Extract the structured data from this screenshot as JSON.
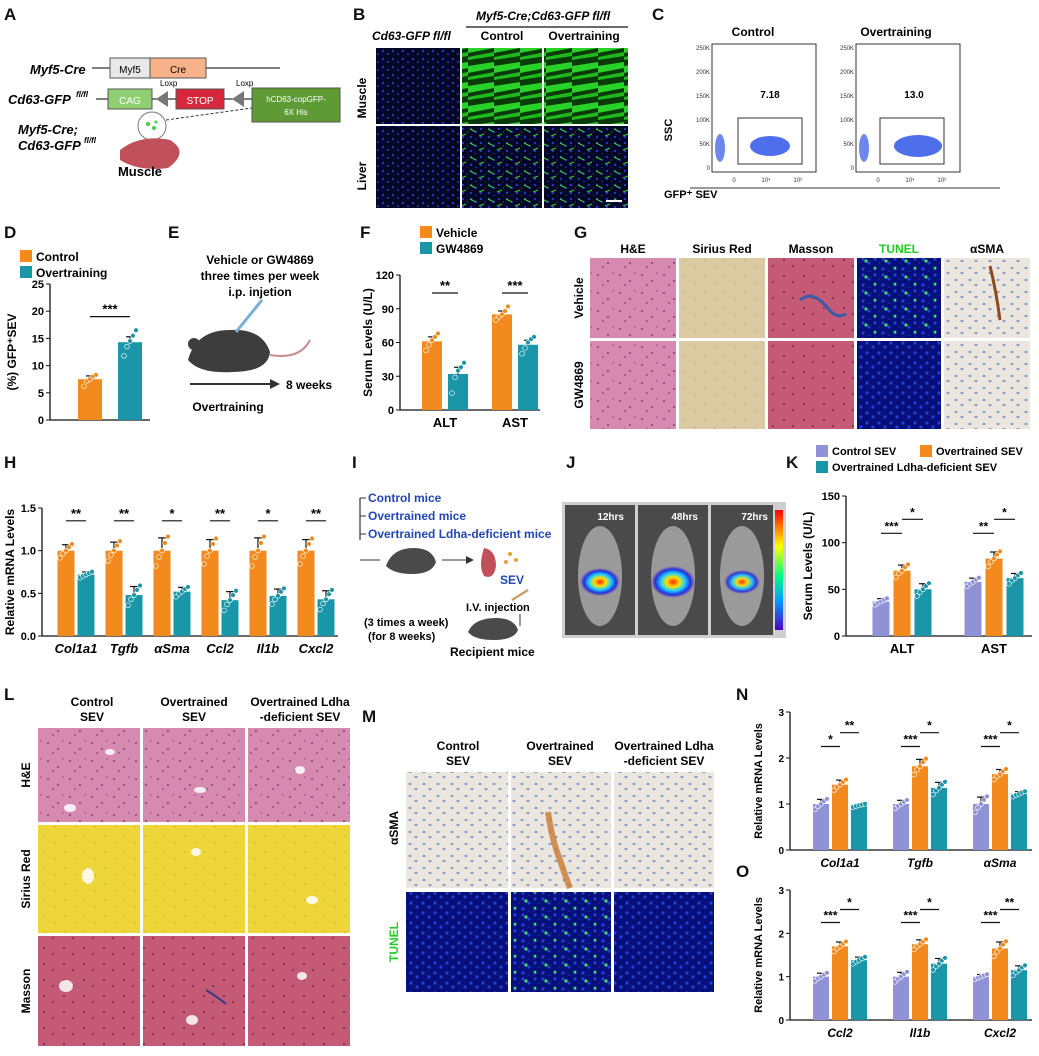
{
  "colors": {
    "control": "#f28a1d",
    "overtraining": "#1a96a8",
    "vehicle": "#f28a1d",
    "gw4869": "#1a96a8",
    "control_sev": "#8f93d6",
    "overtrained_sev": "#f28a1d",
    "ldha_sev": "#1a96a8",
    "he_tissue": "#d78ab0",
    "sirius_tissue": "#d8c8a0",
    "masson_tissue": "#c45a76",
    "tunel_bg": "#07107a",
    "asma_bg": "#e9e3da",
    "gfp_green": "#24d424",
    "dark_bg": "#04082a",
    "stop_red": "#d7283b",
    "cre_orange": "#f7b28a",
    "green_box": "#5e9b34"
  },
  "panels": {
    "A": "A",
    "B": "B",
    "C": "C",
    "D": "D",
    "E": "E",
    "F": "F",
    "G": "G",
    "H": "H",
    "I": "I",
    "J": "J",
    "K": "K",
    "L": "L",
    "M": "M",
    "N": "N",
    "O": "O"
  },
  "panel_a": {
    "myf5_cre_label": "Myf5-Cre",
    "myf5_box": "Myf5",
    "cre_box": "Cre",
    "cd63_label": "Cd63-GFP",
    "cd63_sup": "fl/fl",
    "loxp1": "Loxp",
    "loxp2": "Loxp",
    "cag_box": "CAG",
    "stop_box": "STOP",
    "gfp_box_line1": "hCD63-copGFP-",
    "gfp_box_line2": "6X His",
    "cross_line1": "Myf5-Cre;",
    "cross_line2": "Cd63-GFP",
    "cross_sup": "fl/fl",
    "muscle": "Muscle"
  },
  "panel_b": {
    "col1": "Cd63-GFP fl/fl",
    "group": "Myf5-Cre;Cd63-GFP fl/fl",
    "col2": "Control",
    "col3": "Overtraining",
    "row1": "Muscle",
    "row2": "Liver"
  },
  "panel_c": {
    "title_control": "Control",
    "title_overtraining": "Overtraining",
    "yaxis": "SSC",
    "xaxis": "GFP⁺ SEV",
    "gate_control": "7.18",
    "gate_overtraining": "13.0",
    "y_ticks": [
      "250K",
      "200K",
      "150K",
      "100K",
      "50K",
      "0"
    ],
    "x_ticks": [
      "0",
      "10⁴",
      "10⁶"
    ]
  },
  "panel_e": {
    "line1": "Vehicle or GW4869",
    "line2": "three times per week",
    "line3": "i.p. injetion",
    "duration": "8 weeks",
    "bottom": "Overtraining"
  },
  "panel_g": {
    "cols": [
      "H&E",
      "Sirius Red",
      "Masson",
      "TUNEL",
      "αSMA"
    ],
    "rows": [
      "Vehicle",
      "GW4869"
    ]
  },
  "panel_i": {
    "group1": "Control mice",
    "group2": "Overtrained mice",
    "group3": "Overtrained Ldha-deficient mice",
    "sev": "SEV",
    "schedule_line1": "(3 times a week)",
    "schedule_line2": "(for 8 weeks)",
    "injection": "I.V. injection",
    "recipient": "Recipient mice"
  },
  "panel_j": {
    "times": [
      "12hrs",
      "48hrs",
      "72hrs"
    ]
  },
  "panel_l": {
    "cols": [
      "Control SEV",
      "Overtrained SEV",
      "Overtrained Ldha -deficient SEV"
    ],
    "rows": [
      "H&E",
      "Sirius Red",
      "Masson"
    ]
  },
  "panel_m": {
    "cols": [
      "Control SEV",
      "Overtrained SEV",
      "Overtrained Ldha -deficient SEV"
    ],
    "rows": [
      "αSMA",
      "TUNEL"
    ]
  },
  "chart_data": [
    {
      "id": "D",
      "type": "bar",
      "legend": [
        "Control",
        "Overtraining"
      ],
      "categories": [
        ""
      ],
      "series": [
        {
          "name": "Control",
          "values": [
            7.5
          ],
          "sem": [
            0.6
          ],
          "points": [
            [
              6.2,
              7.2,
              7.5,
              8.0,
              8.3
            ]
          ]
        },
        {
          "name": "Overtraining",
          "values": [
            14.3
          ],
          "sem": [
            1.0
          ],
          "points": [
            [
              11.8,
              13.5,
              14.5,
              15.5,
              16.5
            ]
          ]
        }
      ],
      "ylabel": "(%) GFP⁺SEV",
      "ylim": [
        0,
        25
      ],
      "yticks": [
        0,
        5,
        10,
        15,
        20,
        25
      ],
      "significance": [
        {
          "label": "***",
          "pair": [
            0,
            1
          ]
        }
      ]
    },
    {
      "id": "F",
      "type": "bar",
      "legend": [
        "Vehicle",
        "GW4869"
      ],
      "categories": [
        "ALT",
        "AST"
      ],
      "series": [
        {
          "name": "Vehicle",
          "values": [
            61,
            85
          ],
          "sem": [
            4,
            3
          ],
          "points": [
            [
              53,
              58,
              62,
              65,
              68
            ],
            [
              80,
              83,
              85,
              88,
              92
            ]
          ]
        },
        {
          "name": "GW4869",
          "values": [
            32,
            58
          ],
          "sem": [
            6,
            4
          ],
          "points": [
            [
              15,
              29,
              35,
              38,
              42
            ],
            [
              50,
              55,
              60,
              63,
              65
            ]
          ]
        }
      ],
      "ylabel": "Serum Levels (U/L)",
      "ylim": [
        0,
        120
      ],
      "yticks": [
        0,
        30,
        60,
        90,
        120
      ],
      "significance": [
        {
          "label": "**",
          "category": 0
        },
        {
          "label": "***",
          "category": 1
        }
      ]
    },
    {
      "id": "H",
      "type": "bar",
      "categories": [
        "Col1a1",
        "Tgfb",
        "αSma",
        "Ccl2",
        "Il1b",
        "Cxcl2"
      ],
      "series": [
        {
          "name": "Vehicle",
          "values": [
            1.0,
            1.0,
            1.0,
            1.0,
            1.0,
            1.0
          ],
          "sem": [
            0.07,
            0.1,
            0.15,
            0.13,
            0.15,
            0.13
          ]
        },
        {
          "name": "GW4869",
          "values": [
            0.72,
            0.48,
            0.52,
            0.42,
            0.47,
            0.43
          ],
          "sem": [
            0.03,
            0.1,
            0.05,
            0.1,
            0.08,
            0.1
          ]
        }
      ],
      "ylabel": "Relative mRNA Levels",
      "ylim": [
        0,
        1.5
      ],
      "yticks": [
        0.0,
        0.5,
        1.0,
        1.5
      ],
      "significance": [
        "**",
        "**",
        "*",
        "**",
        "*",
        "**"
      ]
    },
    {
      "id": "K",
      "type": "bar",
      "legend": [
        "Control SEV",
        "Overtrained SEV",
        "Overtrained Ldha-deficient SEV"
      ],
      "categories": [
        "ALT",
        "AST"
      ],
      "series": [
        {
          "name": "Control SEV",
          "values": [
            37,
            58
          ],
          "sem": [
            3,
            4
          ]
        },
        {
          "name": "Overtrained SEV",
          "values": [
            70,
            83
          ],
          "sem": [
            6,
            7
          ]
        },
        {
          "name": "Overtrained Ldha-deficient SEV",
          "values": [
            50,
            62
          ],
          "sem": [
            6,
            5
          ]
        }
      ],
      "ylabel": "Serum Levels (U/L)",
      "ylim": [
        0,
        150
      ],
      "yticks": [
        0,
        50,
        100,
        150
      ],
      "significance": [
        [
          "***",
          "*"
        ],
        [
          "**",
          "*"
        ]
      ]
    },
    {
      "id": "N",
      "type": "bar",
      "categories": [
        "Col1a1",
        "Tgfb",
        "αSma"
      ],
      "series": [
        {
          "name": "Control SEV",
          "values": [
            1.0,
            1.0,
            1.0
          ],
          "sem": [
            0.1,
            0.08,
            0.15
          ]
        },
        {
          "name": "Overtrained SEV",
          "values": [
            1.42,
            1.82,
            1.65
          ],
          "sem": [
            0.1,
            0.15,
            0.1
          ]
        },
        {
          "name": "Overtrained Ldha-deficient SEV",
          "values": [
            0.97,
            1.35,
            1.22
          ],
          "sem": [
            0.03,
            0.12,
            0.05
          ]
        }
      ],
      "ylabel": "Relative mRNA Levels",
      "ylim": [
        0,
        3
      ],
      "yticks": [
        0,
        1,
        2,
        3
      ],
      "significance": [
        [
          "*",
          "**"
        ],
        [
          "***",
          "*"
        ],
        [
          "***",
          "*"
        ]
      ]
    },
    {
      "id": "O",
      "type": "bar",
      "categories": [
        "Ccl2",
        "Il1b",
        "Cxcl2"
      ],
      "series": [
        {
          "name": "Control SEV",
          "values": [
            1.0,
            1.0,
            1.0
          ],
          "sem": [
            0.08,
            0.1,
            0.05
          ]
        },
        {
          "name": "Overtrained SEV",
          "values": [
            1.7,
            1.75,
            1.65
          ],
          "sem": [
            0.1,
            0.1,
            0.15
          ]
        },
        {
          "name": "Overtrained Ldha-deficient SEV",
          "values": [
            1.38,
            1.3,
            1.15
          ],
          "sem": [
            0.07,
            0.12,
            0.1
          ]
        }
      ],
      "ylabel": "Relative mRNA Levels",
      "ylim": [
        0,
        3
      ],
      "yticks": [
        0,
        1,
        2,
        3
      ],
      "significance": [
        [
          "***",
          "*"
        ],
        [
          "***",
          "*"
        ],
        [
          "***",
          "**"
        ]
      ]
    }
  ]
}
